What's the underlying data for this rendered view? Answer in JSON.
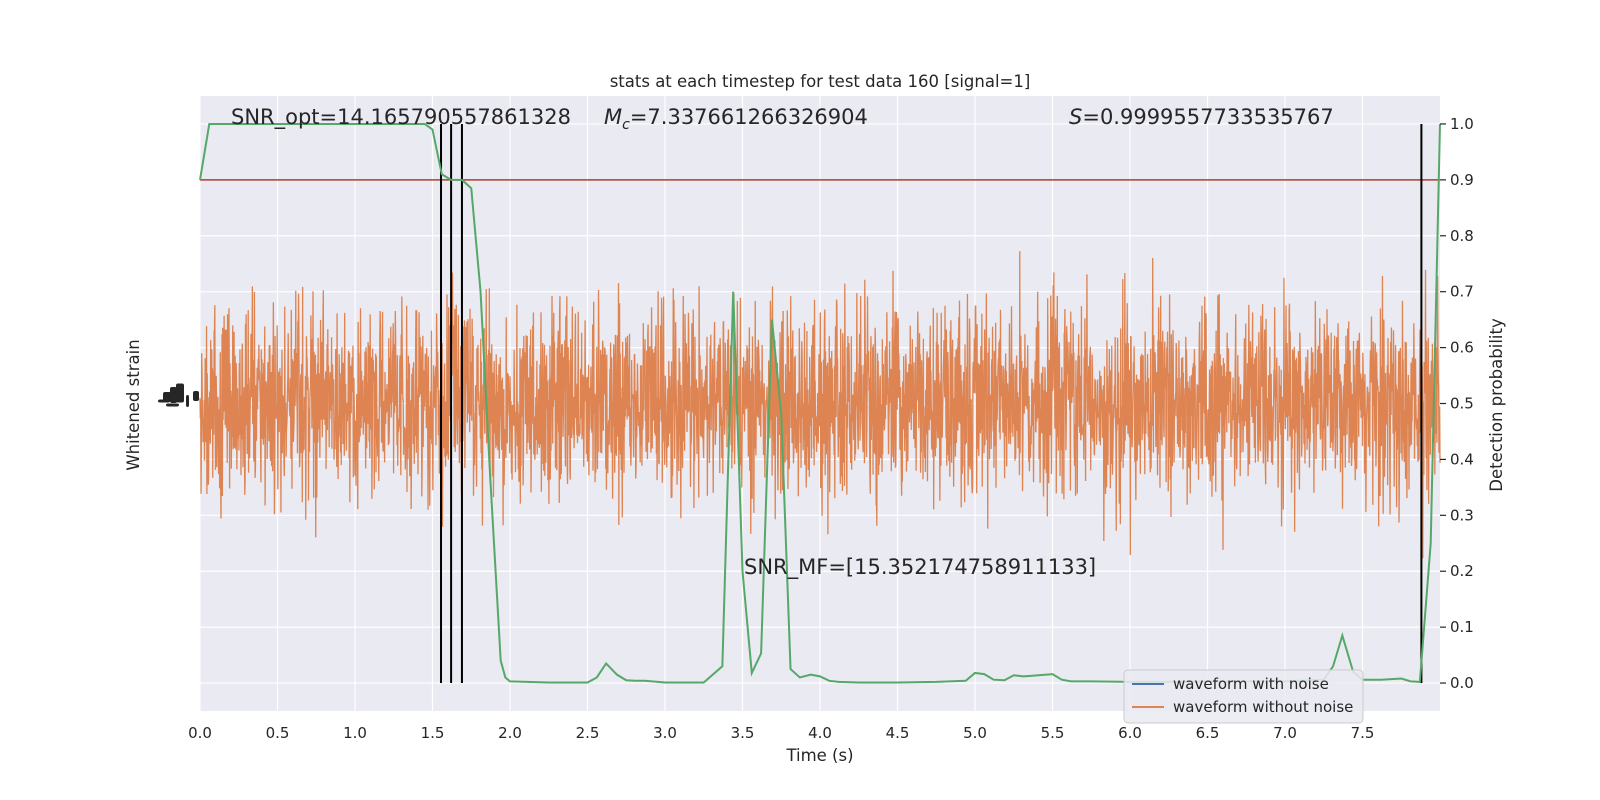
{
  "chart_data": {
    "type": "line",
    "title": "stats at each timestep for test data 160 [signal=1]",
    "xlabel": "Time (s)",
    "ylabel_left": "Whitened strain",
    "ylabel_right": "Detection probability",
    "xlim": [
      0.0,
      8.0
    ],
    "xticks": [
      "0.0",
      "0.5",
      "1.0",
      "1.5",
      "2.0",
      "2.5",
      "3.0",
      "3.5",
      "4.0",
      "4.5",
      "5.0",
      "5.5",
      "6.0",
      "6.5",
      "7.0",
      "7.5"
    ],
    "xtick_values": [
      0.0,
      0.5,
      1.0,
      1.5,
      2.0,
      2.5,
      3.0,
      3.5,
      4.0,
      4.5,
      5.0,
      5.5,
      6.0,
      6.5,
      7.0,
      7.5
    ],
    "ylim_right": [
      -0.05,
      1.05
    ],
    "yticks_right": [
      "0.0",
      "0.1",
      "0.2",
      "0.3",
      "0.4",
      "0.5",
      "0.6",
      "0.7",
      "0.8",
      "0.9",
      "1.0"
    ],
    "ytick_values_right": [
      0.0,
      0.1,
      0.2,
      0.3,
      0.4,
      0.5,
      0.6,
      0.7,
      0.8,
      0.9,
      1.0
    ],
    "grid": true,
    "threshold": {
      "value": 0.9,
      "color": "#b03a2e"
    },
    "vertical_lines": [
      1.555,
      1.62,
      1.69,
      7.88
    ],
    "annotations": {
      "snr_opt": "SNR_opt=14.165790557861328",
      "mc_symbol": "M",
      "mc_sub": "c",
      "mc_value": "=7.337661266326904",
      "s_symbol": "S",
      "s_value": "=0.9999557733535767",
      "snr_mf": "SNR_MF=[15.352174758911133]"
    },
    "series": [
      {
        "name": "waveform with noise",
        "color": "#4c72b0",
        "axis": "left"
      },
      {
        "name": "waveform without noise",
        "color": "#dd8452",
        "axis": "left"
      },
      {
        "color": "#55a868",
        "axis": "right",
        "x": [
          0.0,
          0.06,
          0.25,
          0.5,
          0.75,
          1.0,
          1.25,
          1.45,
          1.5,
          1.56,
          1.62,
          1.69,
          1.75,
          1.81,
          1.87,
          1.94,
          1.97,
          2.0,
          2.25,
          2.5,
          2.56,
          2.62,
          2.69,
          2.75,
          2.81,
          2.87,
          3.0,
          3.25,
          3.37,
          3.44,
          3.5,
          3.56,
          3.62,
          3.69,
          3.75,
          3.81,
          3.87,
          3.94,
          4.0,
          4.06,
          4.12,
          4.25,
          4.5,
          4.75,
          4.94,
          5.0,
          5.06,
          5.12,
          5.19,
          5.25,
          5.31,
          5.37,
          5.5,
          5.56,
          5.62,
          5.75,
          6.0,
          6.25,
          6.5,
          6.75,
          7.0,
          7.25,
          7.31,
          7.37,
          7.44,
          7.5,
          7.62,
          7.75,
          7.81,
          7.87,
          7.94,
          8.0
        ],
        "y": [
          0.9,
          1.0,
          1.0,
          1.0,
          1.0,
          1.0,
          1.0,
          1.0,
          0.99,
          0.91,
          0.9,
          0.9,
          0.885,
          0.7,
          0.38,
          0.04,
          0.01,
          0.003,
          0.001,
          0.001,
          0.01,
          0.035,
          0.015,
          0.005,
          0.004,
          0.004,
          0.001,
          0.001,
          0.03,
          0.7,
          0.2,
          0.018,
          0.053,
          0.65,
          0.48,
          0.025,
          0.01,
          0.015,
          0.012,
          0.004,
          0.002,
          0.001,
          0.001,
          0.002,
          0.004,
          0.018,
          0.016,
          0.006,
          0.005,
          0.014,
          0.012,
          0.013,
          0.016,
          0.006,
          0.003,
          0.003,
          0.002,
          0.002,
          0.003,
          0.003,
          0.003,
          0.006,
          0.03,
          0.085,
          0.02,
          0.006,
          0.006,
          0.008,
          0.003,
          0.002,
          0.25,
          1.0
        ]
      }
    ]
  }
}
